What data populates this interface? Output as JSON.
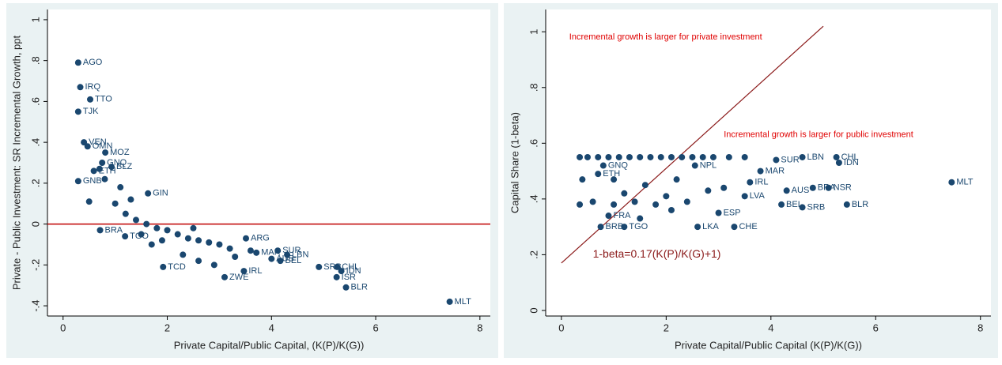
{
  "chart_data": [
    {
      "type": "scatter",
      "x_label": "Private Capital/Public Capital, (K(P)/K(G))",
      "y_label": "Private - Public Investment: SR Incremental Growth, ppt",
      "xlim": [
        -0.3,
        8.2
      ],
      "ylim": [
        -0.45,
        1.05
      ],
      "xticks": [
        0,
        2,
        4,
        6,
        8
      ],
      "yticks": [
        {
          "value": -0.4,
          "label": "-.4"
        },
        {
          "value": -0.2,
          "label": "-.2"
        },
        0,
        {
          "value": 0.2,
          "label": ".2"
        },
        {
          "value": 0.4,
          "label": ".4"
        },
        {
          "value": 0.6,
          "label": ".6"
        },
        {
          "value": 0.8,
          "label": ".8"
        },
        1
      ],
      "hline": 0,
      "hline_color": "#c00000",
      "color": "#1a476f",
      "series": [
        {
          "name": "Countries",
          "color": "#1a476f",
          "labels": [
            "AGO",
            "IRQ",
            "TTO",
            "TJK",
            "VEN",
            "OMN",
            "MOZ",
            "GNQ",
            "BLZ",
            "ETH",
            "GNB",
            "GIN",
            "BRA",
            "TGO",
            "MLT",
            "BLR",
            "ISR",
            "IDN",
            "CHL",
            "SRB",
            "LBN",
            "AUS",
            "MAR",
            "BEL",
            "ARG",
            "ZWE",
            "IRL",
            "TCD",
            "SUR",
            null,
            null,
            null,
            null,
            null,
            null,
            null,
            null,
            null,
            null,
            null,
            null,
            null,
            null,
            null,
            null,
            null,
            null,
            null,
            null,
            null,
            null,
            null,
            null,
            null,
            null
          ],
          "x": [
            0.29,
            0.33,
            0.52,
            0.29,
            0.4,
            0.47,
            0.81,
            0.75,
            0.93,
            0.59,
            0.29,
            1.63,
            0.71,
            1.19,
            7.42,
            5.43,
            5.25,
            5.34,
            5.26,
            4.91,
            4.3,
            4.0,
            3.71,
            4.17,
            3.51,
            3.1,
            3.47,
            1.92,
            4.12,
            1.0,
            1.2,
            1.4,
            1.6,
            1.8,
            2.0,
            2.2,
            2.4,
            2.6,
            2.8,
            3.0,
            3.2,
            1.1,
            1.3,
            0.8,
            0.5,
            1.5,
            1.7,
            2.3,
            2.6,
            2.9,
            3.3,
            3.6,
            0.7,
            1.9,
            2.5
          ],
          "y": [
            0.79,
            0.67,
            0.61,
            0.55,
            0.4,
            0.38,
            0.35,
            0.3,
            0.28,
            0.26,
            0.21,
            0.15,
            -0.03,
            -0.06,
            -0.38,
            -0.31,
            -0.26,
            -0.23,
            -0.21,
            -0.21,
            -0.15,
            -0.17,
            -0.14,
            -0.18,
            -0.07,
            -0.26,
            -0.23,
            -0.21,
            -0.13,
            0.1,
            0.05,
            0.02,
            0.0,
            -0.02,
            -0.03,
            -0.05,
            -0.07,
            -0.08,
            -0.09,
            -0.1,
            -0.12,
            0.18,
            0.12,
            0.22,
            0.11,
            -0.05,
            -0.1,
            -0.15,
            -0.18,
            -0.2,
            -0.16,
            -0.13,
            0.27,
            -0.08,
            -0.02
          ]
        }
      ]
    },
    {
      "type": "scatter",
      "x_label": "Private Capital/Public Capital (K(P)/K(G))",
      "y_label": "Capital Share (1-beta)",
      "xlim": [
        -0.3,
        8.2
      ],
      "ylim": [
        -0.02,
        1.08
      ],
      "xticks": [
        0,
        2,
        4,
        6,
        8
      ],
      "yticks": [
        0,
        {
          "value": 0.2,
          "label": ".2"
        },
        {
          "value": 0.4,
          "label": ".4"
        },
        {
          "value": 0.6,
          "label": ".6"
        },
        {
          "value": 0.8,
          "label": ".8"
        },
        1
      ],
      "annotations": [
        "Incremental growth is larger for private investment",
        "Incremental growth is larger for public investment"
      ],
      "fit": {
        "label": "1-beta=0.17(K(P)/K(G)+1)",
        "x": [
          0,
          5
        ],
        "y": [
          0.17,
          1.02
        ],
        "color": "#8b1a1a"
      },
      "color": "#1a476f",
      "series": [
        {
          "name": "Countries",
          "color": "#1a476f",
          "labels": [
            "LBN",
            "CHL",
            "IDN",
            "SUR",
            "NPL",
            "MAR",
            "IRL",
            "AUS",
            "BRA",
            "NSR",
            "MLT",
            "BEL",
            "SRB",
            "BLR",
            "CHE",
            "LKA",
            "TGO",
            "BRB",
            "ESP",
            "LVA",
            "FRA",
            "ETH",
            "GNQ",
            null,
            null,
            null,
            null,
            null,
            null,
            null,
            null,
            null,
            null,
            null,
            null,
            null,
            null,
            null,
            null,
            null,
            null,
            null,
            null,
            null,
            null,
            null,
            null,
            null,
            null,
            null,
            null,
            null,
            null,
            null,
            null
          ],
          "x": [
            4.6,
            5.25,
            5.3,
            4.1,
            2.55,
            3.8,
            3.6,
            4.3,
            4.8,
            5.1,
            7.45,
            4.2,
            4.6,
            5.45,
            3.3,
            2.6,
            1.2,
            0.75,
            3.0,
            3.5,
            0.9,
            0.7,
            0.8,
            0.35,
            0.5,
            0.7,
            0.9,
            1.1,
            1.3,
            1.5,
            1.7,
            1.9,
            2.1,
            2.3,
            2.5,
            2.7,
            2.9,
            3.2,
            3.5,
            0.4,
            0.6,
            1.0,
            1.2,
            1.4,
            1.6,
            1.8,
            2.0,
            2.2,
            2.4,
            2.8,
            3.1,
            1.5,
            2.1,
            0.35,
            1.0
          ],
          "y": [
            0.55,
            0.55,
            0.53,
            0.54,
            0.52,
            0.5,
            0.46,
            0.43,
            0.44,
            0.44,
            0.46,
            0.38,
            0.37,
            0.38,
            0.3,
            0.3,
            0.3,
            0.3,
            0.35,
            0.41,
            0.34,
            0.49,
            0.52,
            0.55,
            0.55,
            0.55,
            0.55,
            0.55,
            0.55,
            0.55,
            0.55,
            0.55,
            0.55,
            0.55,
            0.55,
            0.55,
            0.55,
            0.55,
            0.55,
            0.47,
            0.39,
            0.47,
            0.42,
            0.39,
            0.45,
            0.38,
            0.41,
            0.47,
            0.39,
            0.43,
            0.44,
            0.33,
            0.36,
            0.38,
            0.38
          ]
        }
      ]
    }
  ]
}
